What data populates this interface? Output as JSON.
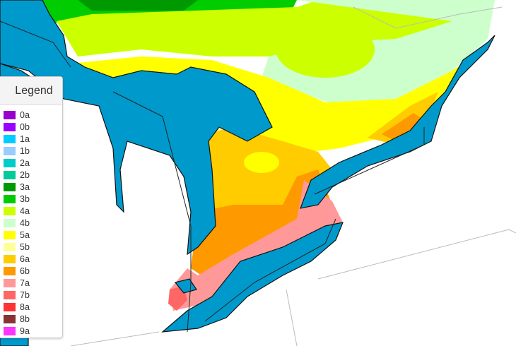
{
  "legend": {
    "title": "Legend",
    "items": [
      {
        "label": "0a",
        "color": "#9900cc"
      },
      {
        "label": "0b",
        "color": "#9900ff"
      },
      {
        "label": "1a",
        "color": "#00ccff"
      },
      {
        "label": "1b",
        "color": "#99ccff"
      },
      {
        "label": "2a",
        "color": "#00cccc"
      },
      {
        "label": "2b",
        "color": "#00cc99"
      },
      {
        "label": "3a",
        "color": "#009900"
      },
      {
        "label": "3b",
        "color": "#00cc00"
      },
      {
        "label": "4a",
        "color": "#ccff00"
      },
      {
        "label": "4b",
        "color": "#ccffcc"
      },
      {
        "label": "5a",
        "color": "#ffff00"
      },
      {
        "label": "5b",
        "color": "#ffff99"
      },
      {
        "label": "6a",
        "color": "#ffcc00"
      },
      {
        "label": "6b",
        "color": "#ff9900"
      },
      {
        "label": "7a",
        "color": "#ff9999"
      },
      {
        "label": "7b",
        "color": "#ff6666"
      },
      {
        "label": "8a",
        "color": "#ff3333"
      },
      {
        "label": "8b",
        "color": "#883333"
      },
      {
        "label": "9a",
        "color": "#ff33ff"
      }
    ]
  },
  "map": {
    "water_color": "#0099cc"
  }
}
